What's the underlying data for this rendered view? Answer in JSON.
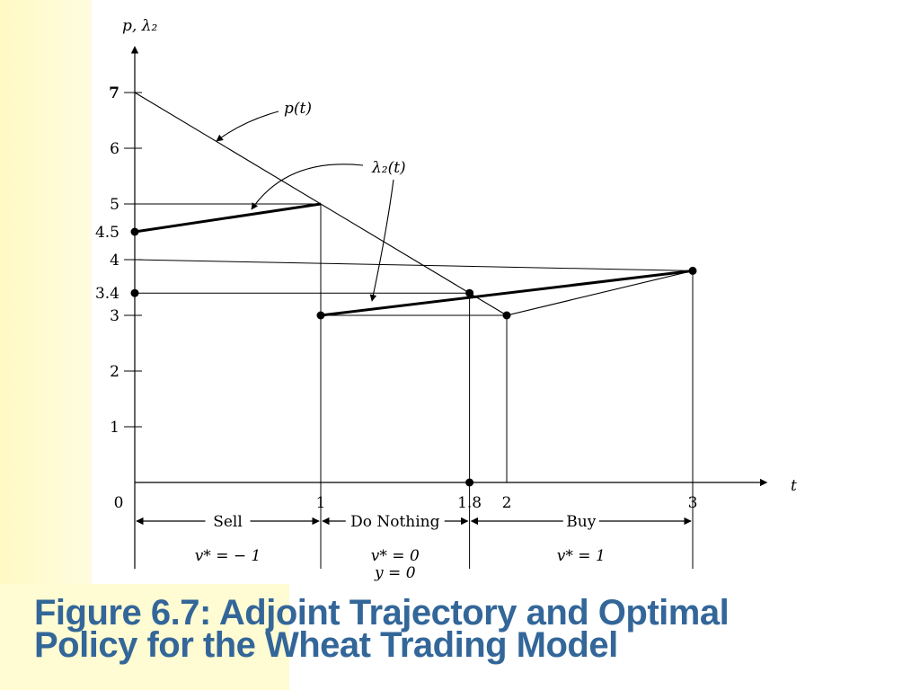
{
  "caption": {
    "line1": "Figure 6.7: Adjoint Trajectory and Optimal",
    "line2": "Policy for the Wheat Trading Model"
  },
  "colors": {
    "caption": "#336699",
    "background_left": "#fff9c4",
    "plot": "#000000"
  },
  "chart_data": {
    "type": "line",
    "xlabel": "t",
    "ylabel": "p, λ₂",
    "xlim": [
      0,
      3.35
    ],
    "ylim": [
      0,
      7.5
    ],
    "x_ticks": [
      {
        "value": 0,
        "label": "0"
      },
      {
        "value": 1,
        "label": "1"
      },
      {
        "value": 1.8,
        "label": "1.8"
      },
      {
        "value": 2,
        "label": "2"
      },
      {
        "value": 3,
        "label": "3"
      }
    ],
    "y_ticks": [
      {
        "value": 1,
        "label": "1"
      },
      {
        "value": 2,
        "label": "2"
      },
      {
        "value": 3,
        "label": "3"
      },
      {
        "value": 3.4,
        "label": "3.4"
      },
      {
        "value": 4,
        "label": "4"
      },
      {
        "value": 4.5,
        "label": "4.5"
      },
      {
        "value": 5,
        "label": "5"
      },
      {
        "value": 6,
        "label": "6"
      },
      {
        "value": 7,
        "label": "7"
      }
    ],
    "series": [
      {
        "name": "p(t)",
        "label": "p(t)",
        "points": [
          [
            0,
            7
          ],
          [
            2,
            3
          ],
          [
            3,
            3.8
          ]
        ],
        "style": "thin"
      },
      {
        "name": "λ₂(t)",
        "label": "λ₂(t)",
        "segments": [
          [
            [
              0,
              4.5
            ],
            [
              1,
              5
            ]
          ],
          [
            [
              1,
              3
            ],
            [
              3,
              3.8
            ]
          ]
        ],
        "style": "thick"
      }
    ],
    "dots": [
      [
        0,
        4.5
      ],
      [
        0,
        3.4
      ],
      [
        1,
        3
      ],
      [
        1.8,
        3.4
      ],
      [
        2,
        3
      ],
      [
        3,
        3.8
      ],
      [
        1.8,
        0
      ]
    ],
    "reference_lines": [
      {
        "from": [
          0,
          5
        ],
        "to": [
          1,
          5
        ]
      },
      {
        "from": [
          0,
          4
        ],
        "to": [
          3,
          3.8
        ]
      },
      {
        "from": [
          0,
          3.4
        ],
        "to": [
          1.8,
          3.4
        ]
      },
      {
        "from": [
          1,
          3
        ],
        "to": [
          2,
          3
        ]
      },
      {
        "from": [
          1,
          5
        ],
        "to": [
          1,
          -1.55
        ]
      },
      {
        "from": [
          1.8,
          3.4
        ],
        "to": [
          1.8,
          -1.55
        ]
      },
      {
        "from": [
          2,
          3
        ],
        "to": [
          2,
          0
        ]
      },
      {
        "from": [
          3,
          3.8
        ],
        "to": [
          3,
          -1.55
        ]
      },
      {
        "from": [
          0,
          0
        ],
        "to": [
          0,
          -1.55
        ]
      }
    ],
    "regions": [
      {
        "label": "Sell",
        "from": 0,
        "to": 1,
        "policy": "v* = − 1",
        "extra": ""
      },
      {
        "label": "Do Nothing",
        "from": 1,
        "to": 1.8,
        "policy": "v* = 0",
        "extra": "y = 0"
      },
      {
        "label": "Buy",
        "from": 1.8,
        "to": 3,
        "policy": "v* = 1",
        "extra": ""
      }
    ]
  }
}
